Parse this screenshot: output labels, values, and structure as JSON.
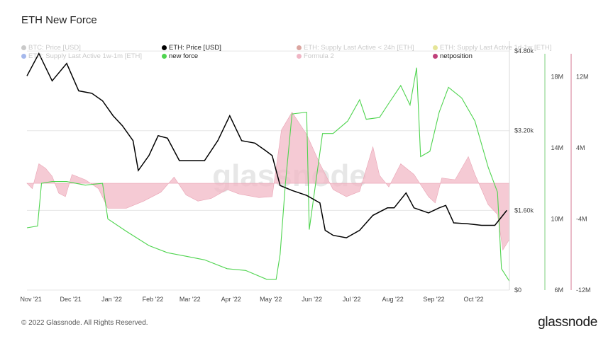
{
  "page": {
    "title": "ETH New Force",
    "footer": "© 2022 Glassnode. All Rights Reserved.",
    "logo": "glassnode",
    "watermark": "glassnode"
  },
  "legend": [
    {
      "label": "BTC: Price [USD]",
      "color": "#888888",
      "active": false
    },
    {
      "label": "ETH: Price [USD]",
      "color": "#000000",
      "active": true
    },
    {
      "label": "ETH: Supply Last Active < 24h [ETH]",
      "color": "#b03a2e",
      "active": false
    },
    {
      "label": "ETH: Supply Last Active 1d-1w [ETH]",
      "color": "#c6c61a",
      "active": false
    },
    {
      "label": "ETH: Supply Last Active 1w-1m [ETH]",
      "color": "#3a63d6",
      "active": false
    },
    {
      "label": "new force",
      "color": "#4fd44f",
      "active": true
    },
    {
      "label": "Formula 2",
      "color": "#e0607f",
      "active": false
    },
    {
      "label": "netposition",
      "color": "#c0407a",
      "active": true
    }
  ],
  "chart_data": {
    "type": "line",
    "x_ticks": [
      "Nov '21",
      "Dec '21",
      "Jan '22",
      "Feb '22",
      "Mar '22",
      "Apr '22",
      "May '22",
      "Jun '22",
      "Jul '22",
      "Aug '22",
      "Sep '22",
      "Oct '22"
    ],
    "x_range": [
      "2021-11-01",
      "2022-10-31"
    ],
    "axes": {
      "price": {
        "ticks": [
          "$0",
          "$1.60k",
          "$3.20k",
          "$4.80k"
        ],
        "range": [
          0,
          5000
        ]
      },
      "new_force": {
        "ticks": [
          "6M",
          "10M",
          "14M",
          "18M"
        ],
        "range": [
          6000000,
          20000000
        ]
      },
      "netposition": {
        "ticks": [
          "-12M",
          "-4M",
          "4M",
          "12M"
        ],
        "range": [
          -12000000,
          16000000
        ]
      }
    },
    "grid": true,
    "series": [
      {
        "name": "ETH: Price [USD]",
        "color": "#000000",
        "axis": "price",
        "points": [
          [
            "2021-11-01",
            4300
          ],
          [
            "2021-11-10",
            4750
          ],
          [
            "2021-11-20",
            4200
          ],
          [
            "2021-12-01",
            4550
          ],
          [
            "2021-12-10",
            4000
          ],
          [
            "2021-12-20",
            3950
          ],
          [
            "2021-12-28",
            3800
          ],
          [
            "2022-01-05",
            3500
          ],
          [
            "2022-01-12",
            3300
          ],
          [
            "2022-01-20",
            3000
          ],
          [
            "2022-01-24",
            2400
          ],
          [
            "2022-02-01",
            2700
          ],
          [
            "2022-02-08",
            3100
          ],
          [
            "2022-02-15",
            3050
          ],
          [
            "2022-02-24",
            2600
          ],
          [
            "2022-03-05",
            2600
          ],
          [
            "2022-03-15",
            2600
          ],
          [
            "2022-03-25",
            3000
          ],
          [
            "2022-04-03",
            3500
          ],
          [
            "2022-04-12",
            3000
          ],
          [
            "2022-04-22",
            2950
          ],
          [
            "2022-04-30",
            2800
          ],
          [
            "2022-05-05",
            2700
          ],
          [
            "2022-05-11",
            2100
          ],
          [
            "2022-05-20",
            2000
          ],
          [
            "2022-05-31",
            1900
          ],
          [
            "2022-06-10",
            1750
          ],
          [
            "2022-06-14",
            1200
          ],
          [
            "2022-06-20",
            1100
          ],
          [
            "2022-06-30",
            1050
          ],
          [
            "2022-07-10",
            1200
          ],
          [
            "2022-07-20",
            1500
          ],
          [
            "2022-07-31",
            1650
          ],
          [
            "2022-08-05",
            1650
          ],
          [
            "2022-08-14",
            1950
          ],
          [
            "2022-08-20",
            1650
          ],
          [
            "2022-08-31",
            1550
          ],
          [
            "2022-09-08",
            1650
          ],
          [
            "2022-09-13",
            1700
          ],
          [
            "2022-09-19",
            1350
          ],
          [
            "2022-09-30",
            1330
          ],
          [
            "2022-10-10",
            1300
          ],
          [
            "2022-10-20",
            1300
          ],
          [
            "2022-10-29",
            1600
          ]
        ]
      },
      {
        "name": "new force",
        "color": "#4fd44f",
        "axis": "new_force",
        "points": [
          [
            "2021-11-01",
            9500000
          ],
          [
            "2021-11-09",
            9600000
          ],
          [
            "2021-11-12",
            12000000
          ],
          [
            "2021-11-20",
            12100000
          ],
          [
            "2021-12-01",
            12100000
          ],
          [
            "2021-12-15",
            11900000
          ],
          [
            "2021-12-28",
            12000000
          ],
          [
            "2022-01-01",
            10000000
          ],
          [
            "2022-01-15",
            9300000
          ],
          [
            "2022-02-01",
            8500000
          ],
          [
            "2022-02-15",
            8100000
          ],
          [
            "2022-03-01",
            7900000
          ],
          [
            "2022-03-15",
            7700000
          ],
          [
            "2022-04-01",
            7200000
          ],
          [
            "2022-04-15",
            7100000
          ],
          [
            "2022-05-01",
            6600000
          ],
          [
            "2022-05-08",
            6600000
          ],
          [
            "2022-05-11",
            8000000
          ],
          [
            "2022-05-15",
            12000000
          ],
          [
            "2022-05-20",
            15900000
          ],
          [
            "2022-05-31",
            16000000
          ],
          [
            "2022-06-02",
            9400000
          ],
          [
            "2022-06-12",
            14800000
          ],
          [
            "2022-06-20",
            14800000
          ],
          [
            "2022-07-01",
            15500000
          ],
          [
            "2022-07-10",
            16700000
          ],
          [
            "2022-07-15",
            15600000
          ],
          [
            "2022-07-25",
            15700000
          ],
          [
            "2022-08-01",
            16500000
          ],
          [
            "2022-08-10",
            17500000
          ],
          [
            "2022-08-17",
            16400000
          ],
          [
            "2022-08-22",
            18500000
          ],
          [
            "2022-08-25",
            13500000
          ],
          [
            "2022-09-01",
            13800000
          ],
          [
            "2022-09-08",
            16000000
          ],
          [
            "2022-09-15",
            17400000
          ],
          [
            "2022-09-25",
            16800000
          ],
          [
            "2022-10-05",
            15500000
          ],
          [
            "2022-10-15",
            12900000
          ],
          [
            "2022-10-22",
            11500000
          ],
          [
            "2022-10-25",
            7200000
          ],
          [
            "2022-10-31",
            6500000
          ]
        ]
      },
      {
        "name": "netposition",
        "color": "#e07a95",
        "axis": "netposition",
        "style": "area",
        "points": [
          [
            "2021-11-01",
            0
          ],
          [
            "2021-11-05",
            -600000
          ],
          [
            "2021-11-10",
            2200000
          ],
          [
            "2021-11-15",
            1700000
          ],
          [
            "2021-11-20",
            800000
          ],
          [
            "2021-11-25",
            -1100000
          ],
          [
            "2021-11-30",
            -1500000
          ],
          [
            "2021-12-05",
            1000000
          ],
          [
            "2021-12-15",
            400000
          ],
          [
            "2021-12-25",
            -600000
          ],
          [
            "2022-01-01",
            -2800000
          ],
          [
            "2022-01-15",
            -2800000
          ],
          [
            "2022-01-28",
            -2000000
          ],
          [
            "2022-02-10",
            -1000000
          ],
          [
            "2022-02-20",
            700000
          ],
          [
            "2022-03-01",
            -1300000
          ],
          [
            "2022-03-10",
            -2000000
          ],
          [
            "2022-03-20",
            -1700000
          ],
          [
            "2022-04-01",
            -700000
          ],
          [
            "2022-04-10",
            -1200000
          ],
          [
            "2022-04-25",
            -1600000
          ],
          [
            "2022-05-05",
            -1500000
          ],
          [
            "2022-05-12",
            6000000
          ],
          [
            "2022-05-20",
            8000000
          ],
          [
            "2022-05-31",
            5500000
          ],
          [
            "2022-06-10",
            2200000
          ],
          [
            "2022-06-20",
            -700000
          ],
          [
            "2022-06-30",
            -1500000
          ],
          [
            "2022-07-10",
            -900000
          ],
          [
            "2022-07-20",
            4100000
          ],
          [
            "2022-07-25",
            900000
          ],
          [
            "2022-08-01",
            -400000
          ],
          [
            "2022-08-10",
            2200000
          ],
          [
            "2022-08-20",
            1000000
          ],
          [
            "2022-08-31",
            -1500000
          ],
          [
            "2022-09-05",
            -2200000
          ],
          [
            "2022-09-10",
            600000
          ],
          [
            "2022-09-20",
            400000
          ],
          [
            "2022-09-30",
            3000000
          ],
          [
            "2022-10-05",
            1000000
          ],
          [
            "2022-10-15",
            -2400000
          ],
          [
            "2022-10-22",
            -3500000
          ],
          [
            "2022-10-26",
            -7500000
          ],
          [
            "2022-10-31",
            -6300000
          ]
        ]
      }
    ]
  }
}
